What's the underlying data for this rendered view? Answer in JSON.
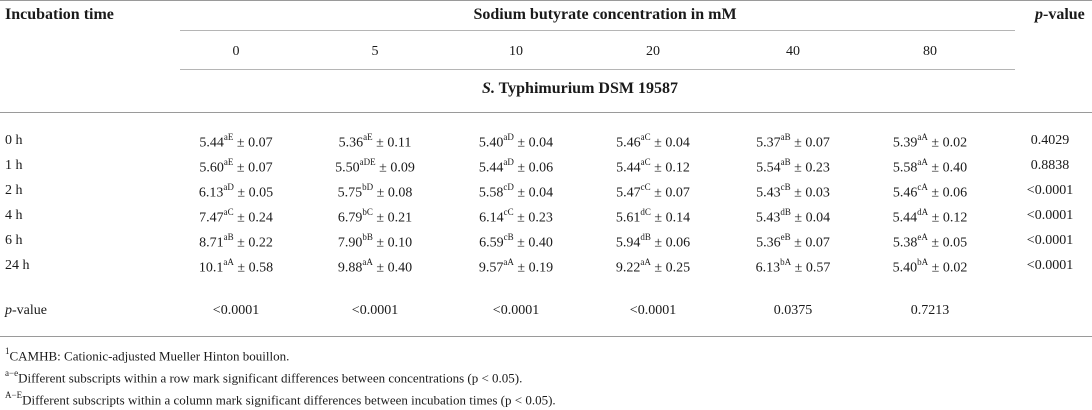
{
  "header": {
    "incubation_time": "Incubation time",
    "concentration_title": "Sodium butyrate concentration in mM",
    "p_value_italic": "p",
    "p_value_rest": "-value",
    "concentrations": [
      "0",
      "5",
      "10",
      "20",
      "40",
      "80"
    ]
  },
  "organism": {
    "italic": "S.",
    "rest": " Typhimurium DSM 19587"
  },
  "rows": [
    {
      "label": "0 h",
      "cells": [
        {
          "v": "5.44",
          "s": "aE",
          "e": " ± 0.07"
        },
        {
          "v": "5.36",
          "s": "aE",
          "e": " ± 0.11"
        },
        {
          "v": "5.40",
          "s": "aD",
          "e": " ± 0.04"
        },
        {
          "v": "5.46",
          "s": "aC",
          "e": " ± 0.04"
        },
        {
          "v": "5.37",
          "s": "aB",
          "e": " ± 0.07"
        },
        {
          "v": "5.39",
          "s": "aA",
          "e": " ± 0.02"
        }
      ],
      "p": "0.4029"
    },
    {
      "label": "1 h",
      "cells": [
        {
          "v": "5.60",
          "s": "aE",
          "e": " ± 0.07"
        },
        {
          "v": "5.50",
          "s": "aDE",
          "e": " ± 0.09"
        },
        {
          "v": "5.44",
          "s": "aD",
          "e": " ± 0.06"
        },
        {
          "v": "5.44",
          "s": "aC",
          "e": " ± 0.12"
        },
        {
          "v": "5.54",
          "s": "aB",
          "e": " ± 0.23"
        },
        {
          "v": "5.58",
          "s": "aA",
          "e": " ± 0.40"
        }
      ],
      "p": "0.8838"
    },
    {
      "label": "2 h",
      "cells": [
        {
          "v": "6.13",
          "s": "aD",
          "e": " ± 0.05"
        },
        {
          "v": "5.75",
          "s": "bD",
          "e": " ± 0.08"
        },
        {
          "v": "5.58",
          "s": "cD",
          "e": " ± 0.04"
        },
        {
          "v": "5.47",
          "s": "cC",
          "e": " ± 0.07"
        },
        {
          "v": "5.43",
          "s": "cB",
          "e": " ± 0.03"
        },
        {
          "v": "5.46",
          "s": "cA",
          "e": " ± 0.06"
        }
      ],
      "p": "<0.0001"
    },
    {
      "label": "4 h",
      "cells": [
        {
          "v": "7.47",
          "s": "aC",
          "e": " ± 0.24"
        },
        {
          "v": "6.79",
          "s": "bC",
          "e": " ± 0.21"
        },
        {
          "v": "6.14",
          "s": "cC",
          "e": " ± 0.23"
        },
        {
          "v": "5.61",
          "s": "dC",
          "e": " ± 0.14"
        },
        {
          "v": "5.43",
          "s": "dB",
          "e": " ± 0.04"
        },
        {
          "v": "5.44",
          "s": "dA",
          "e": " ± 0.12"
        }
      ],
      "p": "<0.0001"
    },
    {
      "label": "6 h",
      "cells": [
        {
          "v": "8.71",
          "s": "aB",
          "e": " ± 0.22"
        },
        {
          "v": "7.90",
          "s": "bB",
          "e": " ± 0.10"
        },
        {
          "v": "6.59",
          "s": "cB",
          "e": " ± 0.40"
        },
        {
          "v": "5.94",
          "s": "dB",
          "e": " ± 0.06"
        },
        {
          "v": "5.36",
          "s": "eB",
          "e": " ± 0.07"
        },
        {
          "v": "5.38",
          "s": "eA",
          "e": " ± 0.05"
        }
      ],
      "p": "<0.0001"
    },
    {
      "label": "24 h",
      "cells": [
        {
          "v": "10.1",
          "s": "aA",
          "e": " ± 0.58"
        },
        {
          "v": "9.88",
          "s": "aA",
          "e": " ± 0.40"
        },
        {
          "v": "9.57",
          "s": "aA",
          "e": " ± 0.19"
        },
        {
          "v": "9.22",
          "s": "aA",
          "e": " ± 0.25"
        },
        {
          "v": "6.13",
          "s": "bA",
          "e": " ± 0.57"
        },
        {
          "v": "5.40",
          "s": "bA",
          "e": " ± 0.02"
        }
      ],
      "p": "<0.0001"
    }
  ],
  "p_row": {
    "label_italic": "p",
    "label_rest": "-value",
    "values": [
      "<0.0001",
      "<0.0001",
      "<0.0001",
      "<0.0001",
      "0.0375",
      "0.7213"
    ]
  },
  "footnotes": [
    {
      "sup": "1",
      "text": "CAMHB: Cationic-adjusted Mueller Hinton bouillon."
    },
    {
      "sup": "a−e",
      "text": "Different subscripts within a row mark significant differences between concentrations (p < 0.05)."
    },
    {
      "sup": "A−E",
      "text": "Different subscripts within a column mark significant differences between incubation times (p < 0.05)."
    }
  ]
}
